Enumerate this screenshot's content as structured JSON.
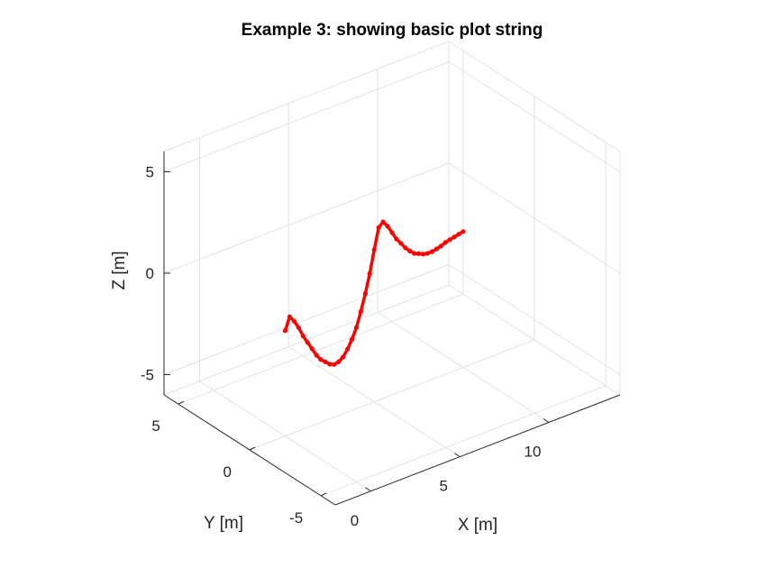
{
  "chart_data": {
    "type": "line",
    "title": "Example 3: showing basic plot string",
    "xlabel": "X [m]",
    "ylabel": "Y [m]",
    "zlabel": "Z [m]",
    "xlim": [
      -2,
      14
    ],
    "ylim": [
      -6,
      6
    ],
    "zlim": [
      -6,
      6
    ],
    "xticks": [
      "0",
      "5",
      "10"
    ],
    "yticks": [
      "-5",
      "0",
      "5"
    ],
    "zticks": [
      "-5",
      "0",
      "5"
    ],
    "grid": true,
    "view": "3d",
    "series": [
      {
        "color": "#ff0000",
        "marker": "dot",
        "x": [
          0,
          0.25,
          0.5,
          0.75,
          1,
          1.25,
          1.5,
          1.75,
          2,
          2.25,
          2.5,
          2.75,
          3,
          3.25,
          3.5,
          3.75,
          4,
          4.25,
          4.5,
          4.75,
          5,
          5.25,
          5.5,
          5.75,
          6,
          6.25,
          6.5,
          6.75,
          7,
          7.25,
          7.5,
          7.75,
          8,
          8.25,
          8.5,
          8.75,
          9,
          9.25,
          9.5,
          9.75,
          10
        ],
        "y": [
          0,
          0,
          0,
          0,
          0,
          0,
          0,
          0,
          0,
          0,
          0,
          0,
          0,
          0,
          0,
          0,
          0,
          0,
          0,
          0,
          0,
          0,
          0,
          0,
          0,
          0,
          0,
          0,
          0,
          0,
          0,
          0,
          0,
          0,
          0,
          0,
          0,
          0,
          0,
          0,
          0
        ],
        "z": [
          -0.8,
          -0.2,
          -0.5,
          -0.9,
          -1.4,
          -1.8,
          -2.2,
          -2.6,
          -2.9,
          -3.1,
          -3.3,
          -3.4,
          -3.35,
          -3.2,
          -2.9,
          -2.5,
          -2.0,
          -1.3,
          -0.5,
          0.4,
          1.5,
          2.5,
          2.7,
          2.4,
          2.0,
          1.6,
          1.3,
          1.0,
          0.75,
          0.55,
          0.45,
          0.35,
          0.3,
          0.3,
          0.35,
          0.4,
          0.5,
          0.55,
          0.6,
          0.65,
          0.7
        ]
      }
    ]
  }
}
